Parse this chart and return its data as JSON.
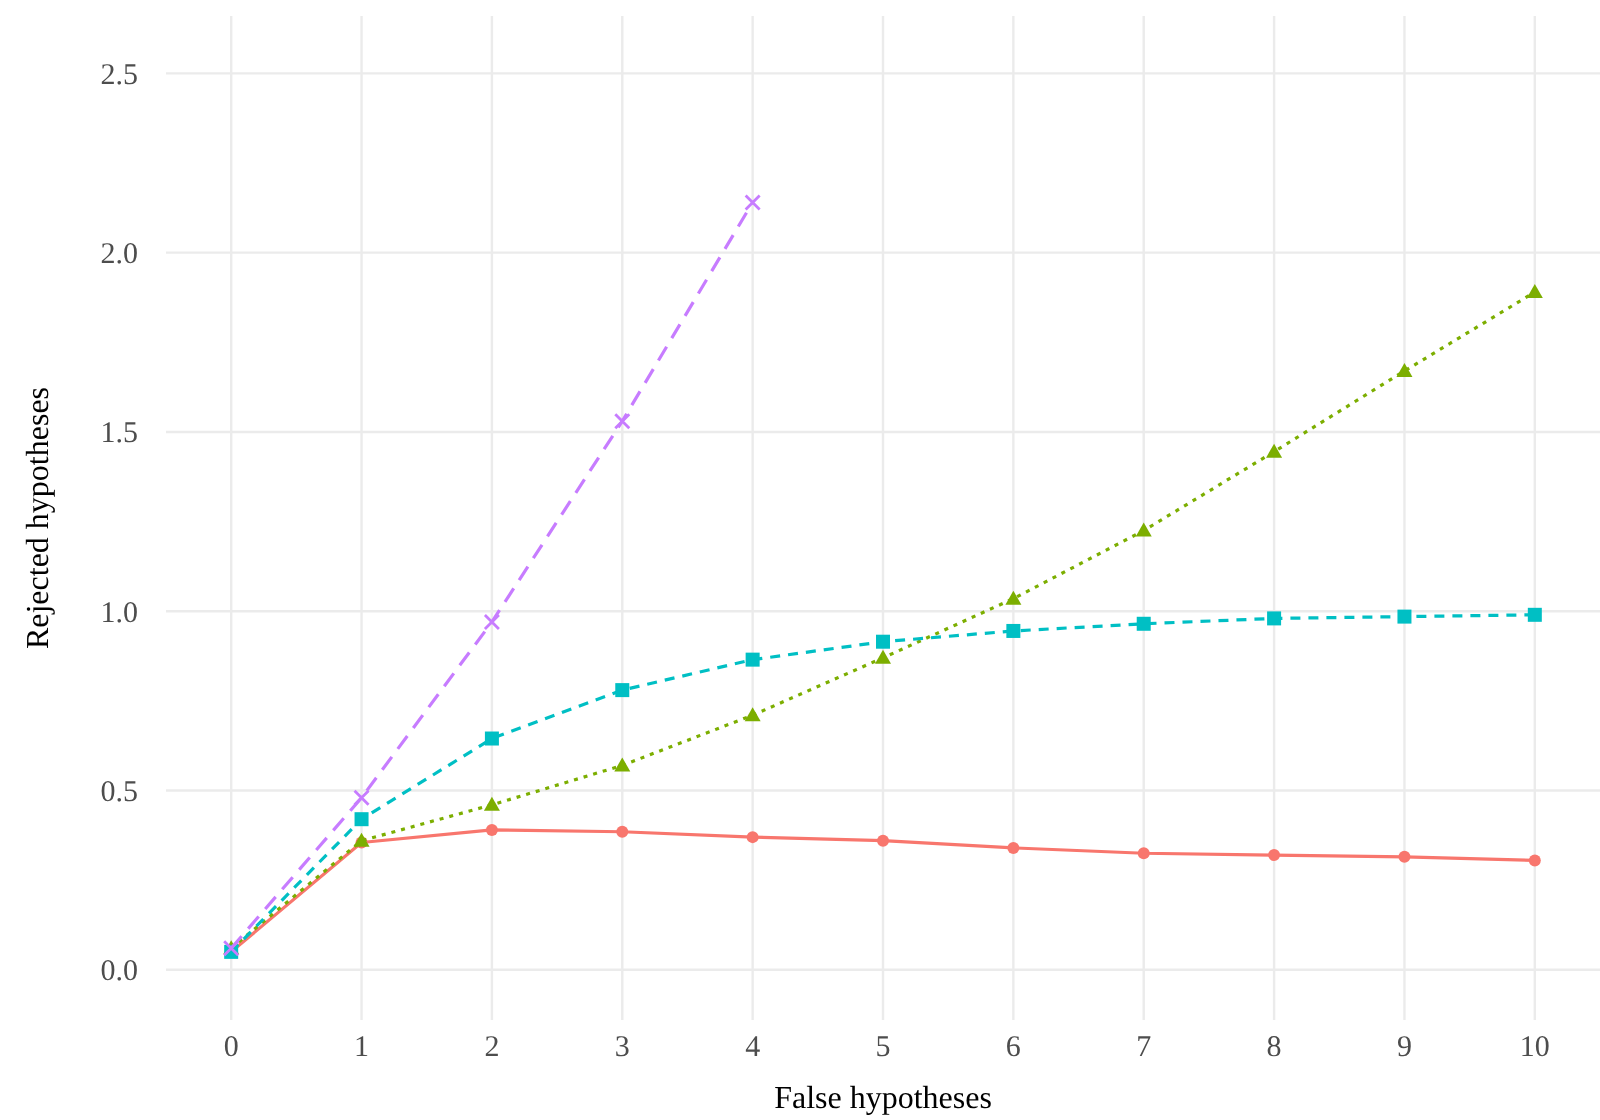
{
  "chart_data": {
    "type": "line",
    "xlabel": "False hypotheses",
    "ylabel": "Rejected hypotheses",
    "x": [
      0,
      1,
      2,
      3,
      4,
      5,
      6,
      7,
      8,
      9,
      10
    ],
    "series": [
      {
        "color": "#f8766d",
        "marker": "circle",
        "line_style": "solid",
        "values": [
          0.05,
          0.355,
          0.39,
          0.385,
          0.37,
          0.36,
          0.34,
          0.325,
          0.32,
          0.315,
          0.305
        ]
      },
      {
        "color": "#7cae00",
        "marker": "triangle",
        "line_style": "dotted",
        "values": [
          0.06,
          0.36,
          0.46,
          0.57,
          0.71,
          0.87,
          1.035,
          1.225,
          1.445,
          1.67,
          1.89
        ]
      },
      {
        "color": "#00bfc4",
        "marker": "square",
        "line_style": "dashed",
        "values": [
          0.05,
          0.42,
          0.645,
          0.78,
          0.865,
          0.915,
          0.945,
          0.965,
          0.98,
          0.985,
          0.99
        ]
      },
      {
        "color": "#c77cff",
        "marker": "cross",
        "line_style": "longdash",
        "values": [
          0.06,
          0.48,
          0.97,
          1.53,
          2.14,
          null,
          null,
          null,
          null,
          null,
          null
        ]
      }
    ],
    "xlim": [
      -0.5,
      10.5
    ],
    "xticks": [
      0,
      1,
      2,
      3,
      4,
      5,
      6,
      7,
      8,
      9,
      10
    ],
    "ylim": [
      -0.14,
      2.66
    ],
    "yticks": [
      {
        "value": 0,
        "label": "0.0"
      },
      {
        "value": 0.5,
        "label": "0.5"
      },
      {
        "value": 1,
        "label": "1.0"
      },
      {
        "value": 1.5,
        "label": "1.5"
      },
      {
        "value": 2,
        "label": "2.0"
      },
      {
        "value": 2.5,
        "label": "2.5"
      }
    ],
    "grid": true
  }
}
